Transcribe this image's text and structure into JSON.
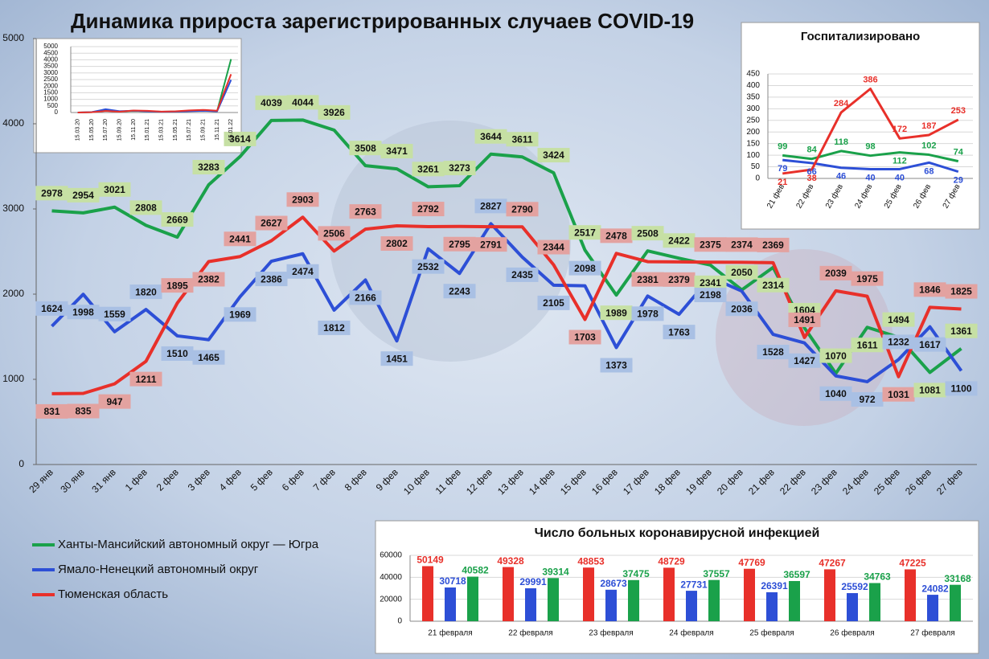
{
  "chart_data": [
    {
      "type": "line",
      "title": "Динамика прироста зарегистрированных случаев COVID-19",
      "categories": [
        "29 янв",
        "30 янв",
        "31 янв",
        "1 фев",
        "2 фев",
        "3 фев",
        "4 фев",
        "5 фев",
        "6 фев",
        "7 фев",
        "8 фев",
        "9 фев",
        "10 фев",
        "11 фев",
        "12 фев",
        "13 фев",
        "14 фев",
        "15 фев",
        "16 фев",
        "17 фев",
        "18 фев",
        "19 фев",
        "20 фев",
        "21 фев",
        "22 фев",
        "23 фев",
        "24 фев",
        "25 фев",
        "26 фев",
        "27 фев"
      ],
      "series": [
        {
          "name": "Ханты-Мансийский автономный округ — Югра",
          "color": "#1aa14a",
          "values": [
            2978,
            2954,
            3021,
            2808,
            2669,
            3283,
            3614,
            4039,
            4044,
            3926,
            3508,
            3471,
            3261,
            3273,
            3644,
            3611,
            3424,
            2517,
            1989,
            2508,
            2422,
            2341,
            2050,
            2314,
            1604,
            1070,
            1611,
            1494,
            1081,
            1361
          ]
        },
        {
          "name": "Ямало-Ненецкий автономный округ",
          "color": "#2d4fd6",
          "values": [
            1624,
            1998,
            1559,
            1820,
            1510,
            1465,
            1969,
            2386,
            2474,
            1812,
            2166,
            1451,
            2532,
            2243,
            2827,
            2435,
            2105,
            2098,
            1373,
            1978,
            1763,
            2198,
            2036,
            1528,
            1427,
            1040,
            972,
            1232,
            1617,
            1100
          ]
        },
        {
          "name": "Тюменская область",
          "color": "#e8302a",
          "values": [
            831,
            835,
            947,
            1211,
            1895,
            2382,
            2441,
            2627,
            2903,
            2506,
            2763,
            2802,
            2792,
            2795,
            2791,
            2790,
            2344,
            1703,
            2478,
            2381,
            2379,
            2375,
            2374,
            2369,
            1491,
            2039,
            1975,
            1031,
            1846,
            1825
          ]
        }
      ],
      "ylim": [
        0,
        5000
      ],
      "yticks": [
        0,
        1000,
        2000,
        3000,
        4000,
        5000
      ],
      "grid": false,
      "legend": "bottom-left"
    },
    {
      "type": "line",
      "categories": [
        "15.03.20",
        "15.05.20",
        "15.07.20",
        "15.09.20",
        "15.11.20",
        "15.01.21",
        "15.03.21",
        "15.05.21",
        "15.07.21",
        "15.09.21",
        "15.11.21",
        "15.01.22"
      ],
      "series": [
        {
          "color": "#1aa14a",
          "values": [
            0,
            20,
            200,
            80,
            120,
            100,
            60,
            80,
            120,
            150,
            100,
            4044
          ]
        },
        {
          "color": "#2d4fd6",
          "values": [
            0,
            30,
            250,
            100,
            140,
            90,
            50,
            70,
            100,
            130,
            90,
            2474
          ]
        },
        {
          "color": "#e8302a",
          "values": [
            0,
            20,
            120,
            60,
            150,
            130,
            70,
            90,
            160,
            200,
            140,
            2903
          ]
        }
      ],
      "ylim": [
        0,
        5000
      ],
      "yticks": [
        0,
        500,
        1000,
        1500,
        2000,
        2500,
        3000,
        3500,
        4000,
        4500,
        5000
      ],
      "grid": true
    },
    {
      "type": "line",
      "title": "Госпитализировано",
      "categories": [
        "21 фев",
        "22 фев",
        "23 фев",
        "24 фев",
        "25 фев",
        "26 фев",
        "27 фев"
      ],
      "series": [
        {
          "color": "#1aa14a",
          "values": [
            99,
            84,
            118,
            98,
            112,
            102,
            74
          ]
        },
        {
          "color": "#2d4fd6",
          "values": [
            79,
            66,
            46,
            40,
            40,
            68,
            29
          ]
        },
        {
          "color": "#e8302a",
          "values": [
            21,
            38,
            284,
            386,
            172,
            187,
            253
          ]
        }
      ],
      "ylim": [
        0,
        450
      ],
      "yticks": [
        0,
        50,
        100,
        150,
        200,
        250,
        300,
        350,
        400,
        450
      ],
      "grid": true
    },
    {
      "type": "bar",
      "title": "Число больных коронавирусной инфекцией",
      "categories": [
        "21 февраля",
        "22 февраля",
        "23 февраля",
        "24 февраля",
        "25 февраля",
        "26 февраля",
        "27 февраля"
      ],
      "series": [
        {
          "color": "#e8302a",
          "values": [
            50149,
            49328,
            48853,
            48729,
            47769,
            47267,
            47225
          ]
        },
        {
          "color": "#2d4fd6",
          "values": [
            30718,
            29991,
            28673,
            27731,
            26391,
            25592,
            24082
          ]
        },
        {
          "color": "#1aa14a",
          "values": [
            40582,
            39314,
            37475,
            37557,
            36597,
            34763,
            33168
          ]
        }
      ],
      "ylim": [
        0,
        60000
      ],
      "yticks": [
        0,
        20000,
        40000,
        60000
      ],
      "grid": true
    }
  ]
}
